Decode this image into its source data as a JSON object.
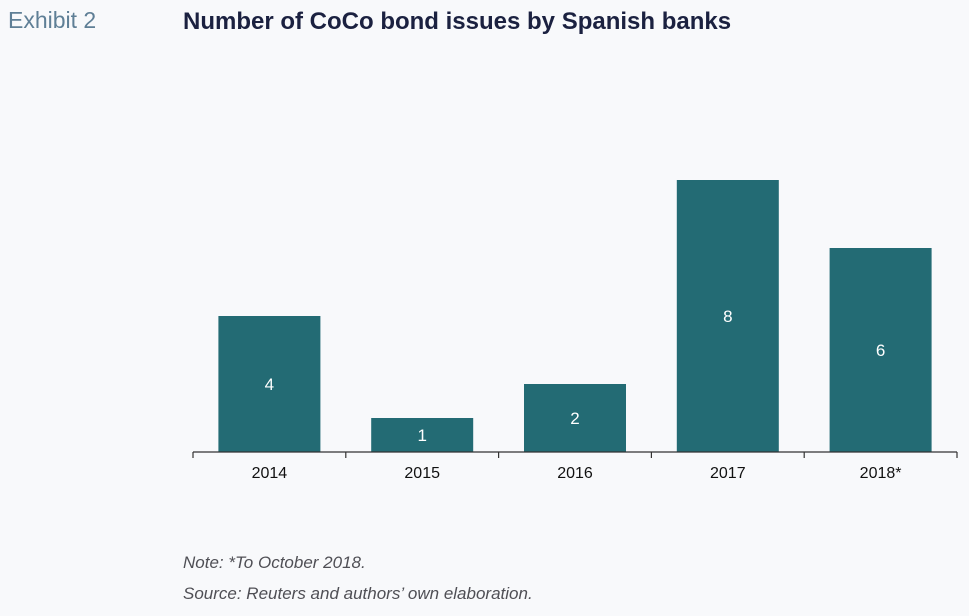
{
  "exhibit_label": "Exhibit 2",
  "chart_data": {
    "type": "bar",
    "title": "Number of CoCo bond issues by Spanish banks",
    "categories": [
      "2014",
      "2015",
      "2016",
      "2017",
      "2018*"
    ],
    "values": [
      4,
      1,
      2,
      8,
      6
    ],
    "data_labels": [
      "4",
      "1",
      "2",
      "8",
      "6"
    ],
    "xlabel": "",
    "ylabel": "",
    "ylim": [
      0,
      8
    ],
    "grid": false,
    "legend": "none",
    "bar_color": "#236b74",
    "label_color": "#ffffff"
  },
  "notes": {
    "note": "Note: *To October 2018.",
    "source": "Source: Reuters and authors’ own elaboration."
  }
}
